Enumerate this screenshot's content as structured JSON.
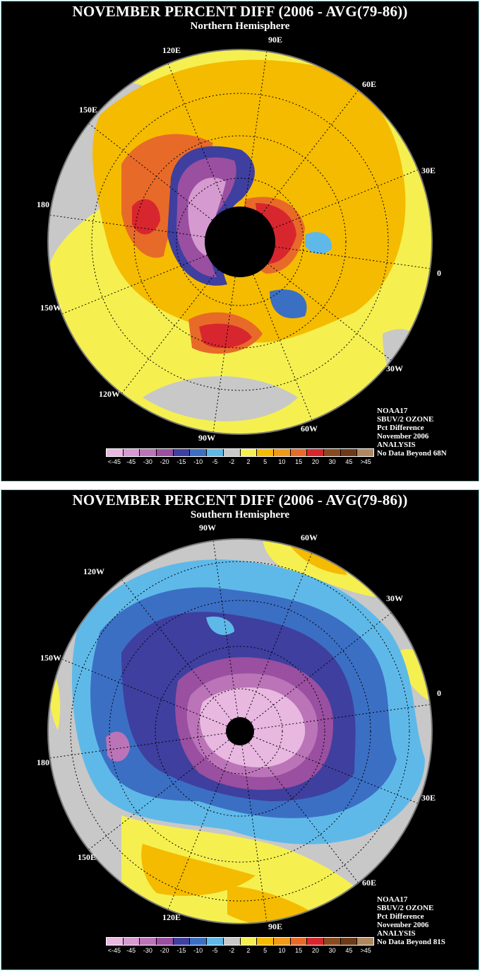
{
  "north": {
    "title": "NOVEMBER PERCENT DIFF (2006 - AVG(79-86))",
    "subtitle": "Northern Hemisphere",
    "longitudes": [
      "90E",
      "60E",
      "30E",
      "0",
      "30W",
      "60W",
      "90W",
      "120W",
      "150W",
      "180",
      "150E",
      "120E"
    ],
    "info": [
      "NOAA17",
      "SBUV/2 OZONE",
      "Pct Difference",
      "November 2006",
      "ANALYSIS",
      "No Data Beyond 68N"
    ]
  },
  "south": {
    "title": "NOVEMBER PERCENT DIFF (2006 - AVG(79-86))",
    "subtitle": "Southern Hemisphere",
    "longitudes": [
      "90W",
      "60W",
      "30W",
      "0",
      "30E",
      "60E",
      "90E",
      "120E",
      "150E",
      "180",
      "150W",
      "120W"
    ],
    "info": [
      "NOAA17",
      "SBUV/2 OZONE",
      "Pct Difference",
      "November 2006",
      "ANALYSIS",
      "No Data Beyond 81S"
    ]
  },
  "legend": {
    "ticks": [
      "<-45",
      "-45",
      "-30",
      "-20",
      "-15",
      "-10",
      "-5",
      "-2",
      "2",
      "5",
      "10",
      "15",
      "20",
      "30",
      "45",
      ">45"
    ],
    "colors": [
      "#e8b8e0",
      "#d59ad0",
      "#bb74b8",
      "#9a4fa0",
      "#3e3f9e",
      "#3b6fc4",
      "#5fb9e8",
      "#c8c8c8",
      "#f5f050",
      "#f5bb00",
      "#f09a18",
      "#e86a28",
      "#d8262e",
      "#8a4a20",
      "#6d3a18",
      "#b08860"
    ]
  },
  "icons": {
    "pole_mask": "polar-no-data-disk",
    "grid": "lat-lon-graticule"
  }
}
